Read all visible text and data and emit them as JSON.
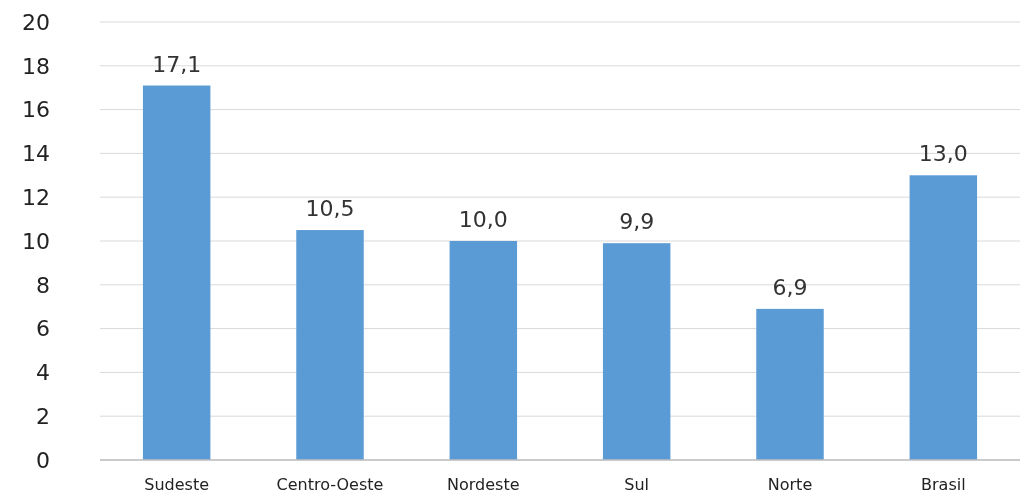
{
  "chart_data": {
    "type": "bar",
    "categories": [
      "Sudeste",
      "Centro-Oeste",
      "Nordeste",
      "Sul",
      "Norte",
      "Brasil"
    ],
    "values": [
      17.1,
      10.5,
      10.0,
      9.9,
      6.9,
      13.0
    ],
    "value_labels": [
      "17,1",
      "10,5",
      "10,0",
      "9,9",
      "6,9",
      "13,0"
    ],
    "color": "#5b9bd5",
    "ylim": [
      0,
      20
    ],
    "yticks": [
      0,
      2,
      4,
      6,
      8,
      10,
      12,
      14,
      16,
      18,
      20
    ],
    "grid": "y"
  }
}
